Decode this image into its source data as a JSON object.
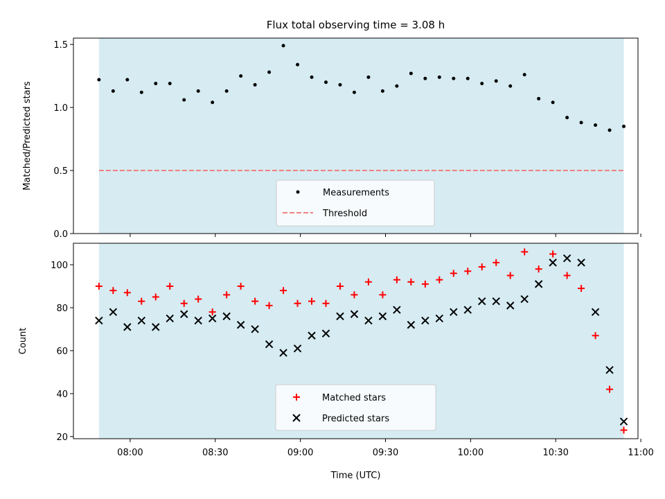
{
  "chart_data": [
    {
      "type": "scatter",
      "title": "Flux total observing time = 3.08 h",
      "xlabel": "",
      "ylabel": "Matched/Predicted stars",
      "xlim": [
        "07:40",
        "10:59"
      ],
      "ylim": [
        0,
        1.55
      ],
      "yticks": [
        "0.0",
        "0.5",
        "1.0",
        "1.5"
      ],
      "shaded_span": [
        "07:49",
        "10:54"
      ],
      "shade_color": "#add8e6",
      "threshold": 0.5,
      "series": [
        {
          "name": "Measurements",
          "marker": "dot",
          "color": "#000000",
          "x": [
            "07:49",
            "07:54",
            "07:59",
            "08:04",
            "08:09",
            "08:14",
            "08:19",
            "08:24",
            "08:29",
            "08:34",
            "08:39",
            "08:44",
            "08:49",
            "08:54",
            "08:59",
            "09:04",
            "09:09",
            "09:14",
            "09:19",
            "09:24",
            "09:29",
            "09:34",
            "09:39",
            "09:44",
            "09:49",
            "09:54",
            "09:59",
            "10:04",
            "10:09",
            "10:14",
            "10:19",
            "10:24",
            "10:29",
            "10:34",
            "10:39",
            "10:44",
            "10:49",
            "10:54"
          ],
          "y": [
            1.22,
            1.13,
            1.22,
            1.12,
            1.19,
            1.19,
            1.06,
            1.13,
            1.04,
            1.13,
            1.25,
            1.18,
            1.28,
            1.49,
            1.34,
            1.24,
            1.2,
            1.18,
            1.12,
            1.24,
            1.13,
            1.17,
            1.27,
            1.23,
            1.24,
            1.23,
            1.23,
            1.19,
            1.21,
            1.17,
            1.26,
            1.07,
            1.04,
            0.92,
            0.88,
            0.86,
            0.82,
            0.85
          ]
        },
        {
          "name": "Threshold",
          "marker": "dashed-line",
          "color": "#f08080"
        }
      ],
      "legend": "bottom-center"
    },
    {
      "type": "scatter",
      "title": "",
      "xlabel": "Time (UTC)",
      "ylabel": "Count",
      "xlim": [
        "07:40",
        "10:59"
      ],
      "ylim": [
        19,
        110
      ],
      "yticks": [
        "20",
        "40",
        "60",
        "80",
        "100"
      ],
      "xticks": [
        "08:00",
        "08:30",
        "09:00",
        "09:30",
        "10:00",
        "10:30",
        "11:00"
      ],
      "shaded_span": [
        "07:49",
        "10:54"
      ],
      "shade_color": "#add8e6",
      "series": [
        {
          "name": "Matched stars",
          "marker": "plus",
          "color": "#ff0000",
          "x": [
            "07:49",
            "07:54",
            "07:59",
            "08:04",
            "08:09",
            "08:14",
            "08:19",
            "08:24",
            "08:29",
            "08:34",
            "08:39",
            "08:44",
            "08:49",
            "08:54",
            "08:59",
            "09:04",
            "09:09",
            "09:14",
            "09:19",
            "09:24",
            "09:29",
            "09:34",
            "09:39",
            "09:44",
            "09:49",
            "09:54",
            "09:59",
            "10:04",
            "10:09",
            "10:14",
            "10:19",
            "10:24",
            "10:29",
            "10:34",
            "10:39",
            "10:44",
            "10:49",
            "10:54"
          ],
          "y": [
            90,
            88,
            87,
            83,
            85,
            90,
            82,
            84,
            78,
            86,
            90,
            83,
            81,
            88,
            82,
            83,
            82,
            90,
            86,
            92,
            86,
            93,
            92,
            91,
            93,
            96,
            97,
            99,
            101,
            95,
            106,
            98,
            105,
            95,
            89,
            67,
            42,
            23
          ]
        },
        {
          "name": "Predicted stars",
          "marker": "x",
          "color": "#000000",
          "x": [
            "07:49",
            "07:54",
            "07:59",
            "08:04",
            "08:09",
            "08:14",
            "08:19",
            "08:24",
            "08:29",
            "08:34",
            "08:39",
            "08:44",
            "08:49",
            "08:54",
            "08:59",
            "09:04",
            "09:09",
            "09:14",
            "09:19",
            "09:24",
            "09:29",
            "09:34",
            "09:39",
            "09:44",
            "09:49",
            "09:54",
            "09:59",
            "10:04",
            "10:09",
            "10:14",
            "10:19",
            "10:24",
            "10:29",
            "10:34",
            "10:39",
            "10:44",
            "10:49",
            "10:54"
          ],
          "y": [
            74,
            78,
            71,
            74,
            71,
            75,
            77,
            74,
            75,
            76,
            72,
            70,
            63,
            59,
            61,
            67,
            68,
            76,
            77,
            74,
            76,
            79,
            72,
            74,
            75,
            78,
            79,
            83,
            83,
            81,
            84,
            91,
            101,
            103,
            101,
            78,
            51,
            27
          ]
        }
      ],
      "legend": "bottom-center"
    }
  ]
}
